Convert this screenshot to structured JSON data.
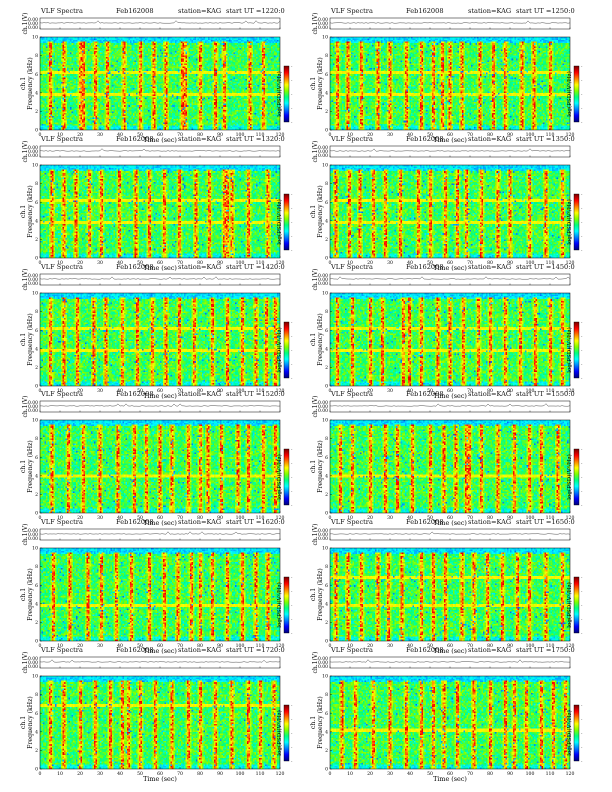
{
  "colors": {
    "colormap": [
      "#000080",
      "#0000ff",
      "#0080ff",
      "#00ffff",
      "#00ff80",
      "#80ff00",
      "#ffff00",
      "#ff8000",
      "#ff0000",
      "#800000"
    ],
    "background_green": "#2ddc76",
    "line": "#ff2020",
    "axis": "#000000"
  },
  "chart_data": [
    {
      "type": "heatmap",
      "title": "VLF Spectra",
      "date": "Feb162008",
      "station": "station=KAG",
      "start": "start UT =1220:0",
      "top_ylabel": "ch.1(V)",
      "top_yticks": [
        "0.00",
        "0.00",
        "0.00"
      ],
      "ylabel": "ch.1\nFrequency (kHz)",
      "xlabel": "Time (sec)",
      "xlim": [
        0,
        120
      ],
      "ylim": [
        0,
        10
      ],
      "xticks": [
        "0",
        "10",
        "20",
        "30",
        "40",
        "50",
        "60",
        "70",
        "80",
        "90",
        "100",
        "110",
        "120"
      ],
      "yticks": [
        "0",
        "2",
        "4",
        "6",
        "8",
        "10"
      ],
      "colorbar_label": "log(PSD)(V²/Hz)",
      "colorbar_ticks": [
        "-",
        "-",
        "-",
        "-",
        "-"
      ],
      "bursts": [
        5,
        12,
        20,
        22,
        28,
        34,
        42,
        50,
        57,
        63,
        71,
        73,
        80,
        88,
        92,
        105,
        112
      ],
      "bands": [
        3.8,
        6.2
      ]
    },
    {
      "type": "heatmap",
      "title": "VLF Spectra",
      "date": "Feb162008",
      "station": "station=KAG",
      "start": "start UT =1250:0",
      "top_ylabel": "ch.1(V)",
      "top_yticks": [
        "0.00",
        "0.00",
        "0.00"
      ],
      "ylabel": "ch.1\nFrequency (kHz)",
      "xlabel": "Time (sec)",
      "xlim": [
        0,
        120
      ],
      "ylim": [
        0,
        10
      ],
      "xticks": [
        "0",
        "10",
        "20",
        "30",
        "40",
        "50",
        "60",
        "70",
        "80",
        "90",
        "100",
        "110",
        "120"
      ],
      "yticks": [
        "0",
        "2",
        "4",
        "6",
        "8",
        "10"
      ],
      "colorbar_label": "log(PSD)(V²/Hz)",
      "colorbar_ticks": [
        "-",
        "-",
        "-",
        "-",
        "-"
      ],
      "bursts": [
        4,
        9,
        16,
        24,
        30,
        38,
        46,
        52,
        56,
        60,
        66,
        75,
        82,
        88,
        96,
        102,
        110
      ],
      "bands": [
        3.8,
        6.2
      ]
    },
    {
      "type": "heatmap",
      "title": "VLF Spectra",
      "date": "Feb162008",
      "station": "station=KAG",
      "start": "start UT =1320:0",
      "top_ylabel": "ch.1(V)",
      "top_yticks": [
        "0.00",
        "0.00",
        "0.00"
      ],
      "ylabel": "ch.1\nFrequency (kHz)",
      "xlabel": "Time (sec)",
      "xlim": [
        0,
        120
      ],
      "ylim": [
        0,
        10
      ],
      "xticks": [
        "0",
        "10",
        "20",
        "30",
        "40",
        "50",
        "60",
        "70",
        "80",
        "90",
        "100",
        "110",
        "120"
      ],
      "yticks": [
        "0",
        "2",
        "4",
        "6",
        "8",
        "10"
      ],
      "colorbar_label": "log(PSD)(V²/Hz)",
      "colorbar_ticks": [
        "-",
        "-",
        "-",
        "-",
        "-"
      ],
      "bursts": [
        6,
        12,
        18,
        25,
        31,
        40,
        48,
        55,
        62,
        70,
        78,
        85,
        92,
        94,
        96,
        104,
        114
      ],
      "bands": [
        3.8,
        6.2
      ]
    },
    {
      "type": "heatmap",
      "title": "VLF Spectra",
      "date": "Feb162008",
      "station": "station=KAG",
      "start": "start UT =1350:0",
      "top_ylabel": "ch.1(V)",
      "top_yticks": [
        "0.00",
        "0.00",
        "0.00"
      ],
      "ylabel": "ch.1\nFrequency (kHz)",
      "xlabel": "Time (sec)",
      "xlim": [
        0,
        120
      ],
      "ylim": [
        0,
        10
      ],
      "xticks": [
        "0",
        "10",
        "20",
        "30",
        "40",
        "50",
        "60",
        "70",
        "80",
        "90",
        "100",
        "110",
        "120"
      ],
      "yticks": [
        "0",
        "2",
        "4",
        "6",
        "8",
        "10"
      ],
      "colorbar_label": "log(PSD)(V²/Hz)",
      "colorbar_ticks": [
        "-",
        "-",
        "-",
        "-",
        "-"
      ],
      "bursts": [
        3,
        10,
        15,
        22,
        28,
        35,
        44,
        50,
        58,
        64,
        68,
        76,
        84,
        90,
        100,
        108,
        116
      ],
      "bands": [
        3.8,
        6.2
      ]
    },
    {
      "type": "heatmap",
      "title": "VLF Spectra",
      "date": "Feb162008",
      "station": "station=KAG",
      "start": "start UT =1420:0",
      "top_ylabel": "ch.1(V)",
      "top_yticks": [
        "0.00",
        "0.00",
        "0.00"
      ],
      "ylabel": "ch.1\nFrequency (kHz)",
      "xlabel": "Time (sec)",
      "xlim": [
        0,
        120
      ],
      "ylim": [
        0,
        10
      ],
      "xticks": [
        "0",
        "10",
        "20",
        "30",
        "40",
        "50",
        "60",
        "70",
        "80",
        "90",
        "100",
        "110",
        "120"
      ],
      "yticks": [
        "0",
        "2",
        "4",
        "6",
        "8",
        "10"
      ],
      "colorbar_label": "log(PSD)(V²/Hz)",
      "colorbar_ticks": [
        "-",
        "-",
        "-",
        "-",
        "-"
      ],
      "bursts": [
        5,
        12,
        19,
        27,
        33,
        41,
        49,
        56,
        63,
        70,
        77,
        86,
        94,
        101,
        108,
        113,
        118
      ],
      "bands": [
        3.8,
        6.2
      ]
    },
    {
      "type": "heatmap",
      "title": "VLF Spectra",
      "date": "Feb162008",
      "station": "station=KAG",
      "start": "start UT =1450:0",
      "top_ylabel": "ch.1(V)",
      "top_yticks": [
        "0.00",
        "0.00",
        "0.00"
      ],
      "ylabel": "ch.1\nFrequency (kHz)",
      "xlabel": "Time (sec)",
      "xlim": [
        0,
        120
      ],
      "ylim": [
        0,
        10
      ],
      "xticks": [
        "0",
        "10",
        "20",
        "30",
        "40",
        "50",
        "60",
        "70",
        "80",
        "90",
        "100",
        "110",
        "120"
      ],
      "yticks": [
        "0",
        "2",
        "4",
        "6",
        "8",
        "10"
      ],
      "colorbar_label": "log(PSD)(V²/Hz)",
      "colorbar_ticks": [
        "-",
        "-",
        "-",
        "-",
        "-"
      ],
      "bursts": [
        4,
        11,
        20,
        26,
        37,
        40,
        46,
        54,
        60,
        67,
        74,
        80,
        88,
        95,
        103,
        110,
        116
      ],
      "bands": [
        3.8,
        6.2
      ]
    },
    {
      "type": "heatmap",
      "title": "VLF Spectra",
      "date": "Feb162008",
      "station": "station=KAG",
      "start": "start UT =1520:0",
      "top_ylabel": "ch.1(V)",
      "top_yticks": [
        "0.00",
        "0.00",
        "0.00"
      ],
      "ylabel": "ch.1\nFrequency (kHz)",
      "xlabel": "Time (sec)",
      "xlim": [
        0,
        120
      ],
      "ylim": [
        0,
        10
      ],
      "xticks": [
        "0",
        "10",
        "20",
        "30",
        "40",
        "50",
        "60",
        "70",
        "80",
        "90",
        "100",
        "110",
        "120"
      ],
      "yticks": [
        "0",
        "2",
        "4",
        "6",
        "8",
        "10"
      ],
      "colorbar_label": "log(PSD)(V²/Hz)",
      "colorbar_ticks": [
        "-",
        "-",
        "-",
        "-",
        "-"
      ],
      "bursts": [
        6,
        14,
        22,
        30,
        39,
        47,
        53,
        60,
        66,
        74,
        80,
        84,
        91,
        99,
        104,
        112,
        118
      ],
      "bands": [
        4.0
      ]
    },
    {
      "type": "heatmap",
      "title": "VLF Spectra",
      "date": "Feb162008",
      "station": "station=KAG",
      "start": "start UT =1550:0",
      "top_ylabel": "ch.1(V)",
      "top_yticks": [
        "0.00",
        "0.00",
        "0.00"
      ],
      "ylabel": "ch.1\nFrequency (kHz)",
      "xlabel": "Time (sec)",
      "xlim": [
        0,
        120
      ],
      "ylim": [
        0,
        10
      ],
      "xticks": [
        "0",
        "10",
        "20",
        "30",
        "40",
        "50",
        "60",
        "70",
        "80",
        "90",
        "100",
        "110",
        "120"
      ],
      "yticks": [
        "0",
        "2",
        "4",
        "6",
        "8",
        "10"
      ],
      "colorbar_label": "log(PSD)(V²/Hz)",
      "colorbar_ticks": [
        "-",
        "-",
        "-",
        "-",
        "-"
      ],
      "bursts": [
        5,
        11,
        20,
        28,
        34,
        41,
        50,
        57,
        63,
        68,
        70,
        76,
        84,
        92,
        100,
        106,
        114
      ],
      "bands": [
        4.0
      ]
    },
    {
      "type": "heatmap",
      "title": "VLF Spectra",
      "date": "Feb162008",
      "station": "station=KAG",
      "start": "start UT =1620:0",
      "top_ylabel": "ch.1(V)",
      "top_yticks": [
        "0.00",
        "0.00",
        "0.00"
      ],
      "ylabel": "ch.1\nFrequency (kHz)",
      "xlabel": "Time (sec)",
      "xlim": [
        0,
        120
      ],
      "ylim": [
        0,
        10
      ],
      "xticks": [
        "0",
        "10",
        "20",
        "30",
        "40",
        "50",
        "60",
        "70",
        "80",
        "90",
        "100",
        "110",
        "120"
      ],
      "yticks": [
        "0",
        "2",
        "4",
        "6",
        "8",
        "10"
      ],
      "colorbar_label": "log(PSD)(V²/Hz)",
      "colorbar_ticks": [
        "-",
        "-",
        "-",
        "-",
        "-"
      ],
      "bursts": [
        7,
        15,
        24,
        31,
        38,
        46,
        55,
        62,
        69,
        76,
        80,
        86,
        94,
        101,
        108,
        114
      ],
      "bands": [
        3.8
      ]
    },
    {
      "type": "heatmap",
      "title": "VLF Spectra",
      "date": "Feb162008",
      "station": "station=KAG",
      "start": "start UT =1650:0",
      "top_ylabel": "ch.1(V)",
      "top_yticks": [
        "0.00",
        "0.00",
        "0.00"
      ],
      "ylabel": "ch.1\nFrequency (kHz)",
      "xlabel": "Time (sec)",
      "xlim": [
        0,
        120
      ],
      "ylim": [
        0,
        10
      ],
      "xticks": [
        "0",
        "10",
        "20",
        "30",
        "40",
        "50",
        "60",
        "70",
        "80",
        "90",
        "100",
        "110",
        "120"
      ],
      "yticks": [
        "0",
        "2",
        "4",
        "6",
        "8",
        "10"
      ],
      "colorbar_label": "log(PSD)(V²/Hz)",
      "colorbar_ticks": [
        "-",
        "-",
        "-",
        "-",
        "-"
      ],
      "bursts": [
        3,
        9,
        16,
        24,
        29,
        36,
        46,
        52,
        58,
        66,
        72,
        79,
        86,
        94,
        100,
        108,
        116
      ],
      "bands": [
        3.8,
        6.8
      ]
    },
    {
      "type": "heatmap",
      "title": "VLF Spectra",
      "date": "Feb162008",
      "station": "station=KAG",
      "start": "start UT =1720:0",
      "top_ylabel": "ch.1(V)",
      "top_yticks": [
        "0.00",
        "0.00",
        "0.00"
      ],
      "ylabel": "ch.1\nFrequency (kHz)",
      "xlabel": "Time (sec)",
      "xlim": [
        0,
        120
      ],
      "ylim": [
        0,
        10
      ],
      "xticks": [
        "0",
        "10",
        "20",
        "30",
        "40",
        "50",
        "60",
        "70",
        "80",
        "90",
        "100",
        "110",
        "120"
      ],
      "yticks": [
        "0",
        "2",
        "4",
        "6",
        "8",
        "10"
      ],
      "colorbar_label": "log(PSD)(V²/Hz)",
      "colorbar_ticks": [
        "-",
        "-",
        "-",
        "-",
        "-"
      ],
      "bursts": [
        5,
        12,
        20,
        28,
        35,
        41,
        44,
        50,
        58,
        66,
        74,
        80,
        88,
        96,
        104,
        110,
        117
      ],
      "bands": [
        6.8
      ]
    },
    {
      "type": "heatmap",
      "title": "VLF Spectra",
      "date": "Feb162008",
      "station": "station=KAG",
      "start": "start UT =1750:0",
      "top_ylabel": "ch.1(V)",
      "top_yticks": [
        "0.00",
        "0.00",
        "0.00"
      ],
      "ylabel": "ch.1\nFrequency (kHz)",
      "xlabel": "Time (sec)",
      "xlim": [
        0,
        120
      ],
      "ylim": [
        0,
        10
      ],
      "xticks": [
        "0",
        "10",
        "20",
        "30",
        "40",
        "50",
        "60",
        "70",
        "80",
        "90",
        "100",
        "110",
        "120"
      ],
      "yticks": [
        "0",
        "2",
        "4",
        "6",
        "8",
        "10"
      ],
      "colorbar_label": "log(PSD)(V²/Hz)",
      "colorbar_ticks": [
        "-",
        "-",
        "-",
        "-",
        "-"
      ],
      "bursts": [
        6,
        13,
        22,
        30,
        38,
        46,
        52,
        57,
        64,
        72,
        80,
        88,
        92,
        98,
        106,
        112,
        118
      ],
      "bands": [
        4.2
      ]
    }
  ]
}
